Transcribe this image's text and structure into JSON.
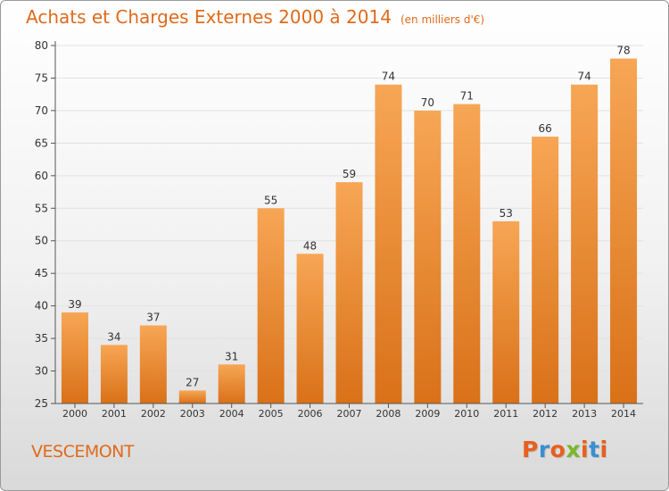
{
  "header": {
    "title": "Achats et Charges Externes 2000 à 2014",
    "unit": "(en milliers d'€)"
  },
  "footer": {
    "commune": "VESCEMONT",
    "logo": "Proxiti"
  },
  "colors": {
    "bar_top": "#f7a655",
    "bar_bottom": "#d97118",
    "title": "#e06a1a",
    "grid": "#e2e2e2",
    "logo_letters": [
      "#e8601c",
      "#3a8fd0",
      "#e8601c",
      "#7ab82b",
      "#e8601c",
      "#3a8fd0",
      "#e8601c"
    ]
  },
  "chart_data": {
    "type": "bar",
    "categories": [
      "2000",
      "2001",
      "2002",
      "2003",
      "2004",
      "2005",
      "2006",
      "2007",
      "2008",
      "2009",
      "2010",
      "2011",
      "2012",
      "2013",
      "2014"
    ],
    "values": [
      39,
      34,
      37,
      27,
      31,
      55,
      48,
      59,
      74,
      70,
      71,
      53,
      66,
      74,
      78
    ],
    "title": "Achats et Charges Externes 2000 à 2014",
    "xlabel": "",
    "ylabel": "",
    "ylim": [
      25,
      80
    ],
    "yticks": [
      25,
      30,
      35,
      40,
      45,
      50,
      55,
      60,
      65,
      70,
      75,
      80
    ],
    "grid": true,
    "data_labels": true
  }
}
